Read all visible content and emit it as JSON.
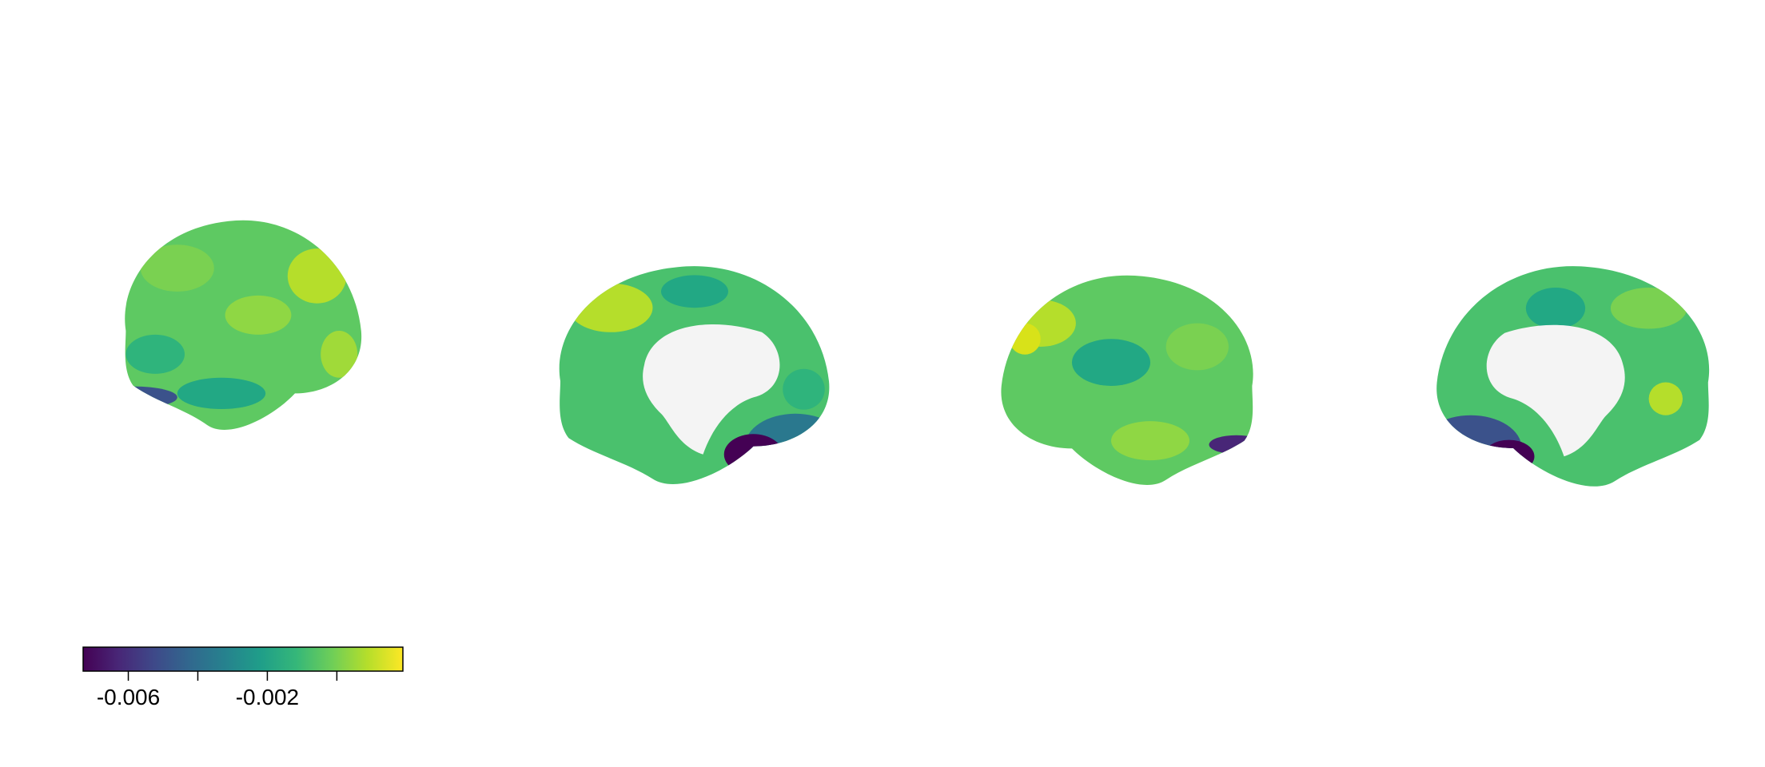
{
  "chart_data": {
    "type": "colorbar",
    "colormap": "viridis",
    "xlim": [
      -0.0073,
      0.0019
    ],
    "xticks": [
      -0.006,
      {
        "value": -0.004,
        "label": null
      },
      -0.002,
      {
        "value": 0,
        "label": null
      }
    ]
  }
}
